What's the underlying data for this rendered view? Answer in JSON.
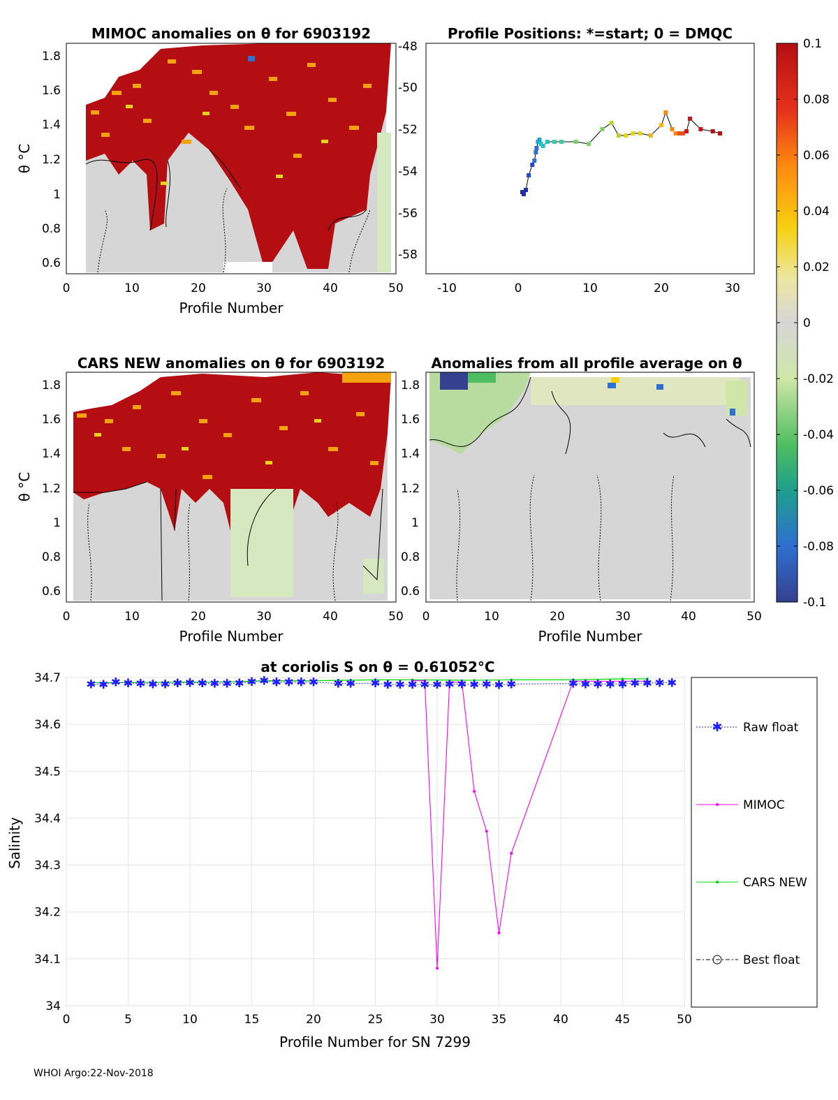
{
  "figure": {
    "footer": "WHOI Argo:22-Nov-2018",
    "colors": {
      "raw": "#1e1eff",
      "mimoc": "#ff00ff",
      "cars": "#00dd00",
      "best": "#000000",
      "anom_high": "#b50e12",
      "neutral": "#d6d6d6",
      "light_green": "#d6e8c0"
    }
  },
  "chart_data": [
    {
      "id": "mimoc-anom",
      "type": "heatmap",
      "title": "MIMOC anomalies on θ  for 6903192",
      "ylabel": "θ °C",
      "xlabel": "Profile Number",
      "xlim": [
        0,
        50
      ],
      "ylim": [
        0.53,
        1.86
      ],
      "xticks": [
        "0",
        "10",
        "20",
        "30",
        "40",
        "50"
      ],
      "yticks": [
        "0.6",
        "0.8",
        "1",
        "1.2",
        "1.4",
        "1.6",
        "1.8"
      ],
      "colorbar_range": [
        -0.1,
        0.1
      ]
    },
    {
      "id": "positions",
      "type": "scatter",
      "title": "Profile Positions: *=start; 0 = DMQC",
      "xlim": [
        -13,
        33
      ],
      "ylim": [
        -59,
        -48
      ],
      "xticks": [
        "-10",
        "0",
        "10",
        "20",
        "30"
      ],
      "yticks": [
        "-48",
        "-50",
        "-52",
        "-54",
        "-56",
        "-58"
      ],
      "x": [
        0.5,
        0.7,
        1,
        1.4,
        1.9,
        2.2,
        2.4,
        2.5,
        2.7,
        2.9,
        3.1,
        3.4,
        4,
        5,
        6,
        8,
        9.8,
        11.7,
        13,
        14,
        15,
        16,
        17,
        18.5,
        20,
        20.6,
        21.5,
        22,
        22.5,
        23,
        23.5,
        24,
        25.5,
        27.2,
        28.2
      ],
      "y": [
        -55.1,
        -55.2,
        -55,
        -54.3,
        -53.8,
        -53.6,
        -53.2,
        -53,
        -52.7,
        -52.6,
        -52.8,
        -52.9,
        -52.7,
        -52.7,
        -52.7,
        -52.7,
        -52.8,
        -52.1,
        -51.8,
        -52.4,
        -52.4,
        -52.3,
        -52.3,
        -52.4,
        -51.9,
        -51.3,
        -52.1,
        -52.3,
        -52.3,
        -52.3,
        -52.2,
        -51.6,
        -52.1,
        -52.2,
        -52.3
      ]
    },
    {
      "id": "cars-anom",
      "type": "heatmap",
      "title": "CARS NEW anomalies on θ for 6903192",
      "ylabel": "θ °C",
      "xlabel": "Profile Number",
      "xlim": [
        0,
        50
      ],
      "ylim": [
        0.53,
        1.86
      ],
      "xticks": [
        "0",
        "10",
        "20",
        "30",
        "40",
        "50"
      ],
      "yticks": [
        "0.6",
        "0.8",
        "1",
        "1.2",
        "1.4",
        "1.6",
        "1.8"
      ]
    },
    {
      "id": "profile-avg-anom",
      "type": "heatmap",
      "title": "Anomalies from all profile average on θ",
      "xlabel": "Profile Number",
      "xlim": [
        0,
        50
      ],
      "ylim": [
        0.53,
        1.86
      ],
      "xticks": [
        "0",
        "10",
        "20",
        "30",
        "40",
        "50"
      ],
      "yticks": [
        "0.6",
        "0.8",
        "1",
        "1.2",
        "1.4",
        "1.6",
        "1.8"
      ]
    },
    {
      "id": "colorbar",
      "type": "heatmap",
      "range": [
        -0.1,
        0.1
      ],
      "ticks": [
        "0.1",
        "0.08",
        "0.06",
        "0.04",
        "0.02",
        "0",
        "-0.02",
        "-0.04",
        "-0.06",
        "-0.08",
        "-0.1"
      ],
      "tick_values": [
        0.1,
        0.08,
        0.06,
        0.04,
        0.02,
        0,
        -0.02,
        -0.04,
        -0.06,
        -0.08,
        -0.1
      ]
    },
    {
      "id": "salinity",
      "type": "line",
      "title": "at coriolis S on θ = 0.61052°C",
      "xlabel": "Profile Number for SN 7299",
      "ylabel": "Salinity",
      "xlim": [
        0,
        50
      ],
      "ylim": [
        34,
        34.7
      ],
      "xticks": [
        "0",
        "5",
        "10",
        "15",
        "20",
        "25",
        "30",
        "35",
        "40",
        "45",
        "50"
      ],
      "yticks": [
        "34.7",
        "34.6",
        "34.5",
        "34.4",
        "34.3",
        "34.2",
        "34.1",
        "34"
      ],
      "grid": true,
      "legend_position": "right-outside",
      "series": [
        {
          "name": "Raw float",
          "x": [
            2,
            3,
            4,
            5,
            6,
            7,
            8,
            9,
            10,
            11,
            12,
            13,
            14,
            15,
            16,
            17,
            18,
            19,
            20,
            22,
            23,
            25,
            26,
            27,
            28,
            29,
            30,
            31,
            32,
            33,
            34,
            35,
            36,
            41,
            42,
            43,
            44,
            45,
            46,
            47,
            48,
            49
          ],
          "y": [
            34.686,
            34.685,
            34.69,
            34.688,
            34.687,
            34.686,
            34.686,
            34.688,
            34.689,
            34.688,
            34.687,
            34.687,
            34.688,
            34.691,
            34.693,
            34.69,
            34.69,
            34.69,
            34.69,
            34.687,
            34.687,
            34.688,
            34.685,
            34.685,
            34.685,
            34.685,
            34.685,
            34.686,
            34.686,
            34.685,
            34.686,
            34.684,
            34.686,
            34.687,
            34.686,
            34.686,
            34.686,
            34.686,
            34.688,
            34.688,
            34.689,
            34.689
          ]
        },
        {
          "name": "MIMOC",
          "x": [
            28,
            29,
            30,
            31,
            32,
            33,
            34,
            35,
            36,
            41,
            42,
            45,
            47
          ],
          "y": [
            34.693,
            34.693,
            34.08,
            34.69,
            34.69,
            34.457,
            34.372,
            34.155,
            34.325,
            34.692,
            34.692,
            34.692,
            34.692
          ]
        },
        {
          "name": "CARS NEW",
          "x": [
            2,
            5,
            8,
            11,
            14,
            16,
            20,
            25,
            28,
            33,
            36,
            41,
            45,
            47
          ],
          "y": [
            34.689,
            34.689,
            34.69,
            34.69,
            34.691,
            34.693,
            34.693,
            34.695,
            34.695,
            34.694,
            34.695,
            34.695,
            34.697,
            34.697
          ]
        },
        {
          "name": "Best float",
          "x": [],
          "y": []
        }
      ]
    }
  ]
}
